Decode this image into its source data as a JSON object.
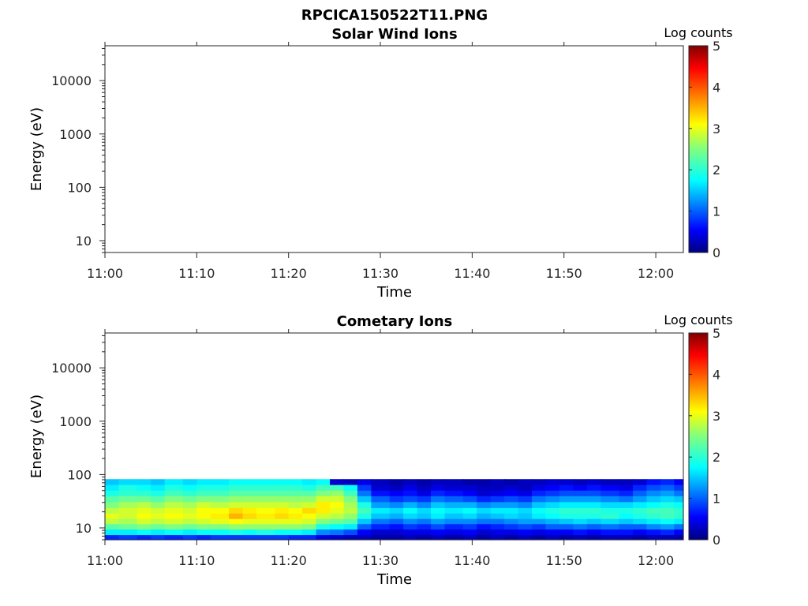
{
  "figure_title": "RPCICA150522T11.PNG",
  "chart_data": [
    {
      "type": "heatmap",
      "title": "Solar Wind Ions",
      "xlabel": "Time",
      "ylabel": "Energy (eV)",
      "x_tick_labels": [
        "11:00",
        "11:10",
        "11:20",
        "11:30",
        "11:40",
        "11:50",
        "12:00"
      ],
      "x_ticks_minutes": [
        0,
        10,
        20,
        30,
        40,
        50,
        60
      ],
      "xlim_minutes_after_11_00": [
        0,
        63
      ],
      "yscale": "log",
      "ylim": [
        6,
        45000
      ],
      "y_ticks": [
        10,
        100,
        1000,
        10000
      ],
      "y_tick_labels": [
        "10",
        "100",
        "1000",
        "10000"
      ],
      "colorbar": {
        "label": "Log counts",
        "range": [
          0,
          5
        ],
        "ticks": [
          "0",
          "1",
          "2",
          "3",
          "4",
          "5"
        ],
        "colormap": "jet"
      },
      "data_present": false,
      "x": [],
      "energy_bins_eV": [],
      "log_counts": []
    },
    {
      "type": "heatmap",
      "title": "Cometary Ions",
      "xlabel": "Time",
      "ylabel": "Energy (eV)",
      "x_tick_labels": [
        "11:00",
        "11:10",
        "11:20",
        "11:30",
        "11:40",
        "11:50",
        "12:00"
      ],
      "x_ticks_minutes": [
        0,
        10,
        20,
        30,
        40,
        50,
        60
      ],
      "xlim_minutes_after_11_00": [
        0,
        63
      ],
      "yscale": "log",
      "ylim": [
        6,
        45000
      ],
      "y_ticks": [
        10,
        100,
        1000,
        10000
      ],
      "y_tick_labels": [
        "10",
        "100",
        "1000",
        "10000"
      ],
      "colorbar": {
        "label": "Log counts",
        "range": [
          0,
          5
        ],
        "ticks": [
          "0",
          "1",
          "2",
          "3",
          "4",
          "5"
        ],
        "colormap": "jet"
      },
      "data_present": true,
      "x": [
        0,
        1.5,
        3.5,
        5,
        6.5,
        8.5,
        10,
        11.5,
        13.5,
        15,
        16.5,
        18.5,
        20,
        21.5,
        23,
        24.5,
        26,
        27.5,
        29,
        31,
        32.5,
        34,
        35.5,
        37,
        39,
        40.5,
        42,
        43.5,
        45,
        46.5,
        48,
        49.5,
        51,
        52.5,
        54,
        56,
        57.5,
        59,
        60.5,
        62,
        63.5
      ],
      "energy_bins_eV": [
        6,
        7.5,
        9.5,
        12,
        15,
        19,
        24,
        31,
        40,
        51,
        65,
        82
      ],
      "log_counts": [
        [
          0.8,
          1.8,
          2.3,
          2.8,
          3.0,
          2.8,
          2.5,
          2.3,
          2.0,
          1.8,
          1.6
        ],
        [
          0.9,
          1.8,
          2.4,
          2.7,
          2.9,
          2.9,
          2.7,
          2.4,
          2.1,
          2.0,
          1.7
        ],
        [
          0.8,
          1.9,
          2.5,
          2.9,
          3.1,
          3.0,
          2.8,
          2.4,
          2.1,
          1.9,
          1.7
        ],
        [
          0.9,
          1.8,
          2.4,
          2.8,
          3.0,
          2.9,
          2.6,
          2.3,
          2.0,
          1.8,
          1.6
        ],
        [
          0.8,
          1.9,
          2.5,
          2.9,
          3.1,
          3.0,
          2.8,
          2.5,
          2.2,
          2.0,
          1.8
        ],
        [
          0.9,
          1.8,
          2.4,
          2.8,
          3.0,
          2.9,
          2.7,
          2.4,
          2.1,
          1.9,
          1.7
        ],
        [
          0.8,
          1.9,
          2.5,
          2.9,
          3.1,
          3.1,
          2.9,
          2.5,
          2.2,
          2.0,
          1.8
        ],
        [
          0.9,
          1.9,
          2.5,
          3.0,
          3.2,
          3.1,
          2.8,
          2.5,
          2.2,
          2.0,
          1.8
        ],
        [
          0.9,
          2.0,
          2.6,
          3.1,
          3.5,
          3.3,
          2.9,
          2.6,
          2.3,
          2.1,
          1.9
        ],
        [
          0.9,
          1.9,
          2.6,
          3.0,
          3.3,
          3.2,
          2.9,
          2.6,
          2.3,
          2.1,
          1.9
        ],
        [
          0.9,
          2.0,
          2.6,
          3.0,
          3.2,
          3.1,
          2.9,
          2.6,
          2.3,
          2.1,
          1.9
        ],
        [
          0.9,
          1.9,
          2.6,
          3.0,
          3.3,
          3.2,
          2.9,
          2.6,
          2.3,
          2.1,
          1.9
        ],
        [
          0.8,
          1.9,
          2.6,
          3.0,
          3.2,
          3.1,
          2.8,
          2.6,
          2.3,
          2.1,
          1.9
        ],
        [
          0.8,
          1.8,
          2.5,
          2.9,
          3.1,
          3.3,
          2.9,
          2.6,
          2.3,
          2.0,
          1.8
        ],
        [
          0.5,
          1.3,
          2.0,
          2.5,
          2.9,
          3.2,
          3.2,
          2.9,
          2.5,
          2.2,
          1.9
        ],
        [
          0.4,
          1.2,
          1.9,
          2.4,
          2.8,
          3.0,
          3.1,
          2.9,
          2.6,
          2.2,
          0.4
        ],
        [
          0.3,
          1.0,
          1.8,
          2.3,
          2.6,
          2.8,
          2.7,
          2.5,
          2.2,
          1.9,
          0.3
        ],
        [
          0.3,
          0.6,
          1.1,
          1.6,
          2.0,
          2.2,
          2.0,
          1.6,
          1.2,
          0.9,
          0.5
        ],
        [
          0.2,
          0.4,
          0.8,
          1.2,
          1.6,
          1.8,
          1.4,
          1.1,
          0.7,
          0.4,
          0.3
        ],
        [
          0.2,
          0.4,
          0.7,
          1.1,
          1.5,
          1.7,
          1.3,
          0.9,
          0.6,
          0.3,
          0.2
        ],
        [
          0.3,
          0.5,
          0.9,
          1.3,
          1.7,
          1.9,
          1.5,
          1.0,
          0.7,
          0.5,
          0.3
        ],
        [
          0.2,
          0.5,
          0.8,
          1.2,
          1.6,
          1.7,
          1.3,
          0.9,
          0.5,
          0.3,
          0.2
        ],
        [
          0.3,
          0.6,
          1.0,
          1.4,
          1.8,
          1.9,
          1.6,
          1.2,
          0.8,
          0.5,
          0.3
        ],
        [
          0.2,
          0.5,
          0.8,
          1.3,
          1.6,
          1.8,
          1.5,
          1.1,
          0.7,
          0.4,
          0.3
        ],
        [
          0.3,
          0.6,
          0.9,
          1.3,
          1.7,
          1.9,
          1.5,
          1.0,
          0.6,
          0.4,
          0.2
        ],
        [
          0.2,
          0.4,
          0.7,
          1.2,
          1.5,
          1.7,
          1.3,
          0.8,
          0.4,
          0.3,
          0.2
        ],
        [
          0.3,
          0.5,
          0.8,
          1.2,
          1.6,
          1.8,
          1.4,
          0.9,
          0.5,
          0.3,
          0.3
        ],
        [
          0.2,
          0.5,
          0.9,
          1.3,
          1.7,
          1.8,
          1.4,
          1.0,
          0.6,
          0.4,
          0.2
        ],
        [
          0.3,
          0.6,
          1.0,
          1.4,
          1.6,
          1.7,
          1.3,
          0.9,
          0.5,
          0.3,
          0.3
        ],
        [
          0.2,
          0.5,
          0.9,
          1.4,
          1.8,
          1.9,
          1.6,
          1.2,
          0.8,
          0.5,
          0.3
        ],
        [
          0.3,
          0.6,
          1.1,
          1.5,
          1.9,
          2.0,
          1.7,
          1.3,
          0.9,
          0.6,
          0.4
        ],
        [
          0.2,
          0.6,
          1.1,
          1.6,
          2.0,
          2.1,
          1.8,
          1.4,
          1.0,
          0.7,
          0.4
        ],
        [
          0.3,
          0.7,
          1.2,
          1.7,
          2.0,
          2.1,
          1.8,
          1.4,
          1.0,
          0.6,
          0.3
        ],
        [
          0.2,
          0.6,
          1.1,
          1.6,
          2.0,
          2.1,
          1.8,
          1.4,
          1.0,
          0.7,
          0.4
        ],
        [
          0.3,
          0.7,
          1.2,
          1.7,
          2.1,
          2.0,
          1.7,
          1.3,
          0.9,
          0.6,
          0.3
        ],
        [
          0.3,
          0.7,
          1.1,
          1.6,
          1.9,
          2.0,
          1.7,
          1.2,
          0.8,
          0.5,
          0.3
        ],
        [
          0.2,
          0.6,
          1.1,
          1.7,
          2.0,
          2.1,
          1.8,
          1.4,
          1.1,
          0.8,
          0.4
        ],
        [
          0.3,
          0.7,
          1.3,
          1.8,
          2.1,
          2.2,
          1.9,
          1.6,
          1.3,
          1.0,
          0.7
        ],
        [
          0.3,
          0.8,
          1.4,
          1.9,
          2.2,
          2.2,
          2.0,
          1.7,
          1.4,
          1.1,
          0.8
        ],
        [
          0.2,
          0.6,
          1.2,
          1.8,
          2.1,
          2.1,
          1.9,
          1.6,
          1.2,
          0.9,
          0.6
        ]
      ]
    }
  ]
}
